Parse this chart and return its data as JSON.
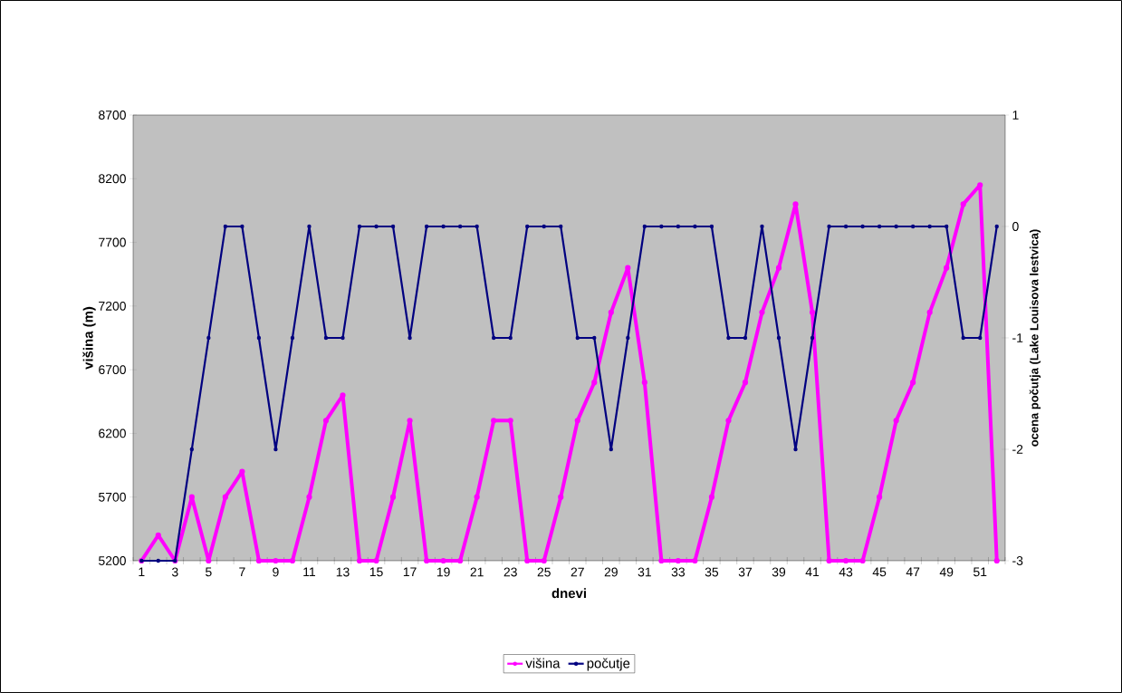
{
  "chart_data": {
    "type": "line",
    "xlabel": "dnevi",
    "ylabel": "višina (m)",
    "y2label": "ocena počutja (Lake Louisova lestvica)",
    "categories": [
      "1",
      null,
      "3",
      null,
      "5",
      null,
      "7",
      null,
      "9",
      null,
      "11",
      null,
      "13",
      null,
      "15",
      null,
      "17",
      null,
      "19",
      null,
      "21",
      null,
      "23",
      null,
      "25",
      null,
      "27",
      null,
      "29",
      null,
      "31",
      null,
      "33",
      null,
      "35",
      null,
      "37",
      null,
      "39",
      null,
      "41",
      null,
      "43",
      null,
      "45",
      null,
      "47",
      null,
      "49",
      null,
      "51",
      null
    ],
    "series": [
      {
        "name": "višina",
        "color": "#ff00ff",
        "values": [
          5200,
          5400,
          5200,
          5700,
          5200,
          5700,
          5900,
          5200,
          5200,
          5200,
          5700,
          6300,
          6500,
          5200,
          5200,
          5700,
          6300,
          5200,
          5200,
          5200,
          5700,
          6300,
          6300,
          5200,
          5200,
          5700,
          6300,
          6600,
          7150,
          7500,
          6600,
          5200,
          5200,
          5200,
          5700,
          6300,
          6600,
          7150,
          7500,
          8000,
          7150,
          5200,
          5200,
          5200,
          5700,
          6300,
          6600,
          7150,
          7500,
          8000,
          8150,
          5200
        ]
      },
      {
        "name": "počutje",
        "color": "#000080",
        "axis": "y2",
        "values": [
          -3,
          -3,
          -3,
          -2,
          -1,
          0,
          0,
          -1,
          -2,
          -1,
          0,
          -1,
          -1,
          0,
          0,
          0,
          -1,
          0,
          0,
          0,
          0,
          -1,
          -1,
          0,
          0,
          0,
          -1,
          -1,
          -2,
          -1,
          0,
          0,
          0,
          0,
          0,
          -1,
          -1,
          0,
          -1,
          -2,
          -1,
          0,
          0,
          0,
          0,
          0,
          0,
          0,
          0,
          -1,
          -1,
          0
        ]
      }
    ],
    "ylim": [
      5200,
      8700
    ],
    "yticks": [
      5200,
      5700,
      6200,
      6700,
      7200,
      7700,
      8200,
      8700
    ],
    "y2lim": [
      -3,
      1
    ],
    "y2ticks": [
      -3,
      -2,
      -1,
      0,
      1
    ],
    "legend": "bottom",
    "marker": "circle",
    "line_style": "solid"
  }
}
